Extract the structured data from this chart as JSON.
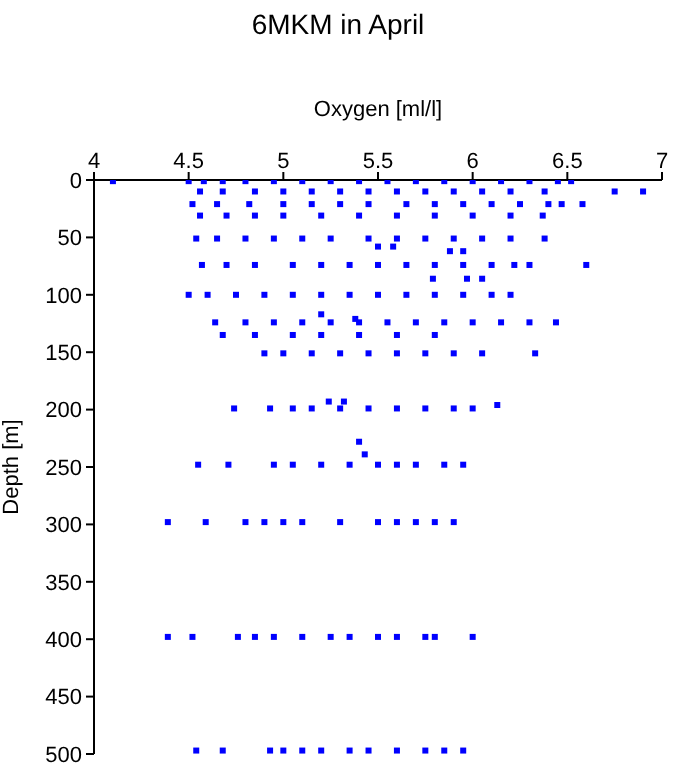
{
  "chart_data": {
    "type": "scatter",
    "title": "6MKM in April",
    "xlabel": "Oxygen [ml/l]",
    "ylabel": "Depth [m]",
    "xlim": [
      4,
      7
    ],
    "xticks": [
      4,
      4.5,
      5,
      5.5,
      6,
      6.5,
      7
    ],
    "ylim": [
      500,
      0
    ],
    "yticks": [
      0,
      50,
      100,
      150,
      200,
      250,
      300,
      350,
      400,
      450,
      500
    ],
    "grid": false,
    "marker": "square",
    "series": [
      {
        "color": "#0000ff",
        "x": [
          4.1,
          4.5,
          4.58,
          4.68,
          4.8,
          4.95,
          5.1,
          5.25,
          5.4,
          5.55,
          5.7,
          5.85,
          6.0,
          6.15,
          6.3,
          6.45,
          6.52,
          4.56,
          4.68,
          4.85,
          5.0,
          5.15,
          5.3,
          5.45,
          5.6,
          5.75,
          5.9,
          6.05,
          6.2,
          6.38,
          6.75,
          6.9,
          4.52,
          4.65,
          4.82,
          5.0,
          5.15,
          5.3,
          5.45,
          5.65,
          5.8,
          5.95,
          6.1,
          6.25,
          6.4,
          6.47,
          6.58,
          4.56,
          4.7,
          4.85,
          5.0,
          5.2,
          5.4,
          5.6,
          5.8,
          6.0,
          6.2,
          6.37,
          4.54,
          4.65,
          4.8,
          4.95,
          5.1,
          5.25,
          5.45,
          5.6,
          5.75,
          5.9,
          6.05,
          6.2,
          6.38,
          5.5,
          5.58,
          5.88,
          5.95,
          4.57,
          4.7,
          4.85,
          5.05,
          5.2,
          5.35,
          5.5,
          5.65,
          5.8,
          5.95,
          6.1,
          6.22,
          6.3,
          6.6,
          5.79,
          5.97,
          6.05,
          4.5,
          4.6,
          4.75,
          4.9,
          5.05,
          5.2,
          5.35,
          5.5,
          5.65,
          5.8,
          5.95,
          6.1,
          6.2,
          5.2,
          5.38,
          4.64,
          4.8,
          4.95,
          5.1,
          5.25,
          5.4,
          5.55,
          5.7,
          5.85,
          6.0,
          6.15,
          6.3,
          6.44,
          4.68,
          4.85,
          5.05,
          5.2,
          5.4,
          5.6,
          5.8,
          4.9,
          5.0,
          5.15,
          5.3,
          5.45,
          5.6,
          5.75,
          5.9,
          6.05,
          6.33,
          5.24,
          5.32,
          6.13,
          4.74,
          4.93,
          5.05,
          5.15,
          5.3,
          5.45,
          5.6,
          5.75,
          5.9,
          6.0,
          5.4,
          5.43,
          4.55,
          4.71,
          4.95,
          5.05,
          5.2,
          5.35,
          5.5,
          5.6,
          5.7,
          5.85,
          5.95,
          4.39,
          4.59,
          4.8,
          4.9,
          5.0,
          5.1,
          5.3,
          5.5,
          5.6,
          5.7,
          5.8,
          5.9,
          4.39,
          4.52,
          4.76,
          4.85,
          4.95,
          5.1,
          5.25,
          5.35,
          5.5,
          5.6,
          5.75,
          5.8,
          6.0,
          4.54,
          4.68,
          4.93,
          5.0,
          5.1,
          5.2,
          5.35,
          5.45,
          5.6,
          5.75,
          5.85,
          5.95
        ],
        "values": [
          1,
          1,
          1,
          1,
          1,
          1,
          1,
          1,
          1,
          1,
          1,
          1,
          1,
          1,
          1,
          1,
          1,
          10,
          10,
          10,
          10,
          10,
          10,
          10,
          10,
          10,
          10,
          10,
          10,
          10,
          10,
          10,
          21,
          21,
          21,
          21,
          21,
          21,
          21,
          21,
          21,
          21,
          21,
          21,
          21,
          21,
          21,
          31,
          31,
          31,
          31,
          31,
          31,
          31,
          31,
          31,
          31,
          31,
          51,
          51,
          51,
          51,
          51,
          51,
          51,
          51,
          51,
          51,
          51,
          51,
          51,
          58,
          58,
          62,
          62,
          74,
          74,
          74,
          74,
          74,
          74,
          74,
          74,
          74,
          74,
          74,
          74,
          74,
          74,
          86,
          86,
          86,
          100,
          100,
          100,
          100,
          100,
          100,
          100,
          100,
          100,
          100,
          100,
          100,
          100,
          117,
          121,
          124,
          124,
          124,
          124,
          124,
          124,
          124,
          124,
          124,
          124,
          124,
          124,
          124,
          135,
          135,
          135,
          135,
          135,
          135,
          135,
          151,
          151,
          151,
          151,
          151,
          151,
          151,
          151,
          151,
          151,
          193,
          193,
          196,
          199,
          199,
          199,
          199,
          199,
          199,
          199,
          199,
          199,
          199,
          228,
          239,
          248,
          248,
          248,
          248,
          248,
          248,
          248,
          248,
          248,
          248,
          248,
          298,
          298,
          298,
          298,
          298,
          298,
          298,
          298,
          298,
          298,
          298,
          298,
          398,
          398,
          398,
          398,
          398,
          398,
          398,
          398,
          398,
          398,
          398,
          398,
          398,
          497,
          497,
          497,
          497,
          497,
          497,
          497,
          497,
          497,
          497,
          497,
          497
        ]
      }
    ]
  }
}
